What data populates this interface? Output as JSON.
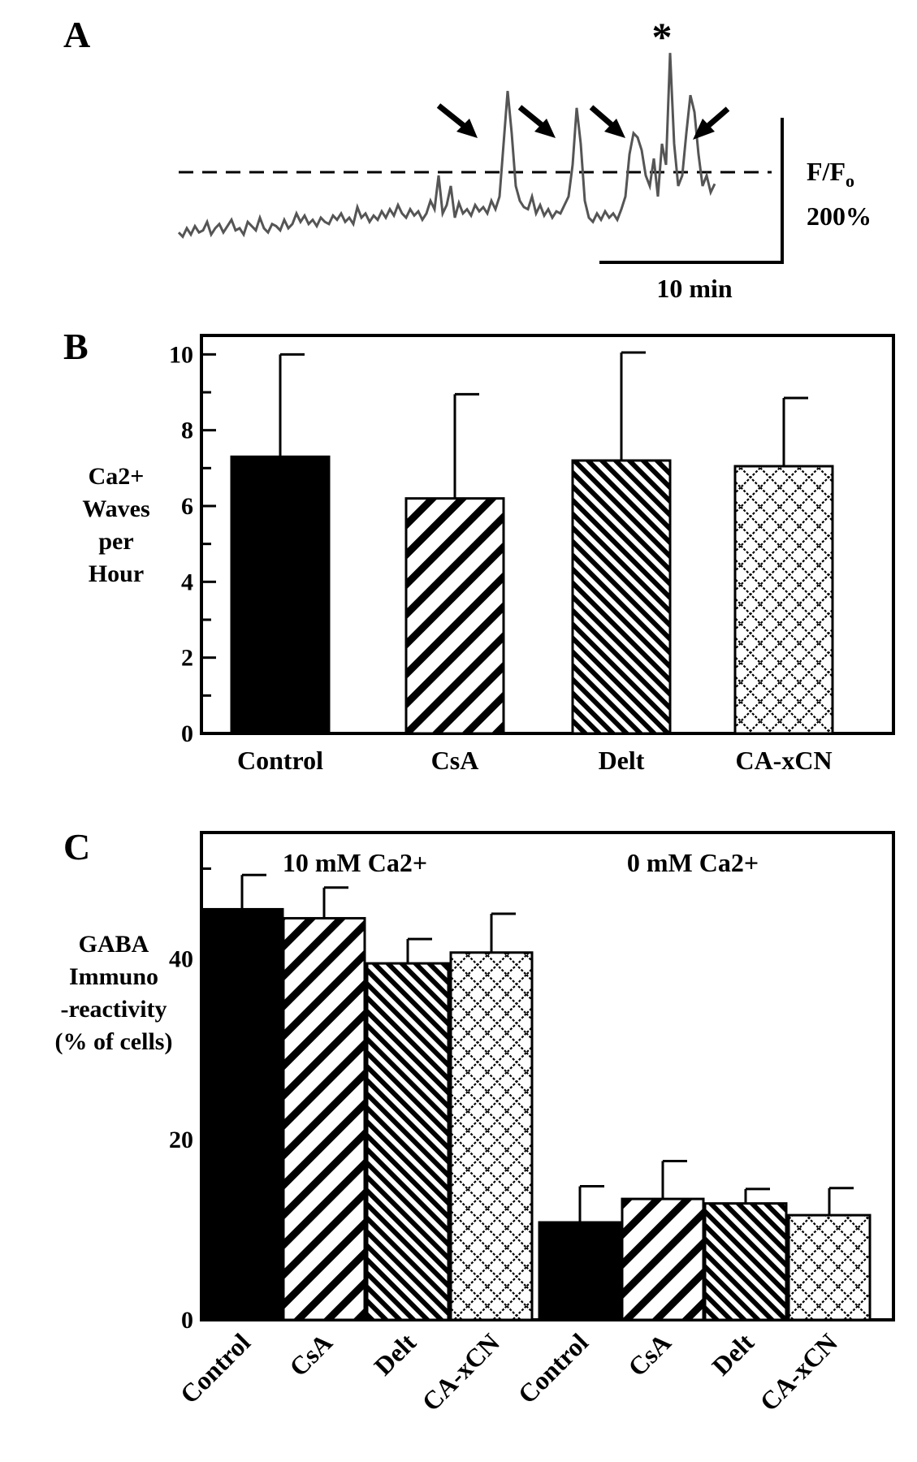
{
  "panels": {
    "a": {
      "label": "A"
    },
    "b": {
      "label": "B"
    },
    "c": {
      "label": "C"
    }
  },
  "chart_data": [
    {
      "type": "line",
      "panel": "A",
      "marker": "*",
      "scale_bar": {
        "y_label": "F/F",
        "y_label_sub": "o",
        "y_value": "200%",
        "x_value": "10 min"
      },
      "threshold": "dashed",
      "arrows": 4,
      "trace": [
        0.13,
        0.11,
        0.15,
        0.12,
        0.16,
        0.13,
        0.14,
        0.18,
        0.12,
        0.15,
        0.17,
        0.13,
        0.16,
        0.19,
        0.14,
        0.15,
        0.12,
        0.18,
        0.16,
        0.14,
        0.2,
        0.15,
        0.13,
        0.17,
        0.16,
        0.14,
        0.19,
        0.15,
        0.17,
        0.22,
        0.18,
        0.21,
        0.17,
        0.19,
        0.16,
        0.2,
        0.18,
        0.17,
        0.21,
        0.19,
        0.22,
        0.18,
        0.2,
        0.17,
        0.25,
        0.2,
        0.22,
        0.18,
        0.21,
        0.19,
        0.23,
        0.2,
        0.24,
        0.21,
        0.26,
        0.22,
        0.2,
        0.24,
        0.21,
        0.23,
        0.19,
        0.22,
        0.28,
        0.24,
        0.4,
        0.22,
        0.26,
        0.35,
        0.2,
        0.27,
        0.22,
        0.24,
        0.21,
        0.26,
        0.23,
        0.25,
        0.22,
        0.28,
        0.24,
        0.3,
        0.55,
        0.8,
        0.6,
        0.35,
        0.28,
        0.25,
        0.24,
        0.3,
        0.22,
        0.26,
        0.21,
        0.24,
        0.2,
        0.23,
        0.22,
        0.26,
        0.3,
        0.45,
        0.72,
        0.55,
        0.28,
        0.2,
        0.18,
        0.22,
        0.19,
        0.23,
        0.2,
        0.22,
        0.19,
        0.24,
        0.3,
        0.5,
        0.6,
        0.58,
        0.52,
        0.4,
        0.35,
        0.48,
        0.3,
        0.55,
        0.45,
        0.98,
        0.55,
        0.35,
        0.4,
        0.6,
        0.78,
        0.7,
        0.5,
        0.35,
        0.4,
        0.32,
        0.36
      ]
    },
    {
      "type": "bar",
      "panel": "B",
      "ylabel": [
        "Ca2+",
        "Waves",
        "per",
        "Hour"
      ],
      "ylim": [
        0,
        10.5
      ],
      "yticks": [
        0,
        2,
        4,
        6,
        8,
        10
      ],
      "categories": [
        "Control",
        "CsA",
        "Delt",
        "CA-xCN"
      ],
      "values": [
        7.3,
        6.2,
        7.2,
        7.05
      ],
      "errors": [
        2.7,
        2.75,
        2.85,
        1.8
      ],
      "patterns": [
        "solid",
        "diag-wide",
        "diag-dense",
        "crosshatch"
      ]
    },
    {
      "type": "bar",
      "panel": "C",
      "ylabel": [
        "GABA",
        "Immuno",
        "-reactivity",
        "(% of cells)"
      ],
      "ylim": [
        0,
        54
      ],
      "yticks": [
        0,
        20,
        40
      ],
      "groups": [
        "10 mM Ca2+",
        "0 mM Ca2+"
      ],
      "categories": [
        "Control",
        "CsA",
        "Delt",
        "CA-xCN",
        "Control",
        "CsA",
        "Delt",
        "CA-xCN"
      ],
      "values": [
        45.5,
        44.5,
        39.5,
        40.7,
        10.8,
        13.4,
        12.9,
        11.6
      ],
      "errors": [
        3.8,
        3.4,
        2.7,
        4.3,
        4.0,
        4.2,
        1.6,
        3.0
      ],
      "patterns": [
        "solid",
        "diag-wide",
        "diag-dense",
        "crosshatch",
        "solid",
        "diag-wide",
        "diag-dense",
        "crosshatch"
      ]
    }
  ]
}
